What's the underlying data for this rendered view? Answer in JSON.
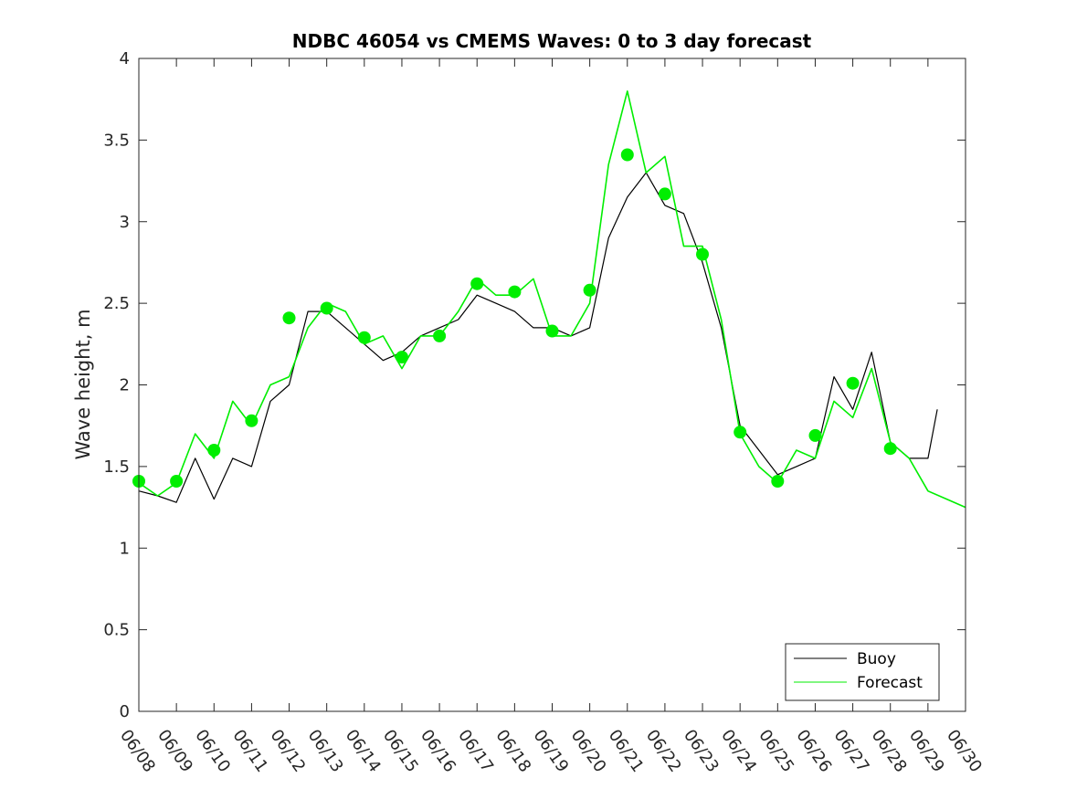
{
  "chart_data": {
    "type": "line",
    "title": "NDBC 46054 vs CMEMS Waves: 0 to 3 day forecast",
    "xlabel": "",
    "ylabel": "Wave height, m",
    "xlim": [
      "06/08",
      "06/30"
    ],
    "ylim": [
      0,
      4
    ],
    "x_tick_labels": [
      "06/08",
      "06/09",
      "06/10",
      "06/11",
      "06/12",
      "06/13",
      "06/14",
      "06/15",
      "06/16",
      "06/17",
      "06/18",
      "06/19",
      "06/20",
      "06/21",
      "06/22",
      "06/23",
      "06/24",
      "06/25",
      "06/26",
      "06/27",
      "06/28",
      "06/29",
      "06/30"
    ],
    "y_tick_labels": [
      "0",
      "0.5",
      "1",
      "1.5",
      "2",
      "2.5",
      "3",
      "3.5",
      "4"
    ],
    "grid": false,
    "legend_position": "bottom-right",
    "colors": {
      "buoy": "#000000",
      "forecast": "#00ee00",
      "markers": "#00ee00"
    },
    "series": [
      {
        "name": "Buoy",
        "x": [
          "06/08",
          "06/08 12:00",
          "06/09",
          "06/09 12:00",
          "06/10",
          "06/10 12:00",
          "06/11",
          "06/11 12:00",
          "06/12",
          "06/12 12:00",
          "06/13",
          "06/13 12:00",
          "06/14",
          "06/14 12:00",
          "06/15",
          "06/15 12:00",
          "06/16",
          "06/16 12:00",
          "06/17",
          "06/17 12:00",
          "06/18",
          "06/18 12:00",
          "06/19",
          "06/19 12:00",
          "06/20",
          "06/20 12:00",
          "06/21",
          "06/21 12:00",
          "06/22",
          "06/22 12:00",
          "06/23",
          "06/23 12:00",
          "06/24",
          "06/24 12:00",
          "06/25",
          "06/25 12:00",
          "06/26",
          "06/26 12:00",
          "06/27",
          "06/27 12:00",
          "06/28",
          "06/28 12:00",
          "06/29",
          "06/29 06:00"
        ],
        "values": [
          1.35,
          1.32,
          1.28,
          1.55,
          1.3,
          1.55,
          1.5,
          1.9,
          2.0,
          2.45,
          2.45,
          2.35,
          2.25,
          2.15,
          2.2,
          2.3,
          2.35,
          2.4,
          2.55,
          2.5,
          2.45,
          2.35,
          2.35,
          2.3,
          2.35,
          2.9,
          3.15,
          3.3,
          3.1,
          3.05,
          2.75,
          2.35,
          1.75,
          1.6,
          1.45,
          1.5,
          1.55,
          2.05,
          1.85,
          2.2,
          1.65,
          1.55,
          1.55,
          1.85
        ]
      },
      {
        "name": "Forecast",
        "x": [
          "06/08",
          "06/08 12:00",
          "06/09",
          "06/09 12:00",
          "06/10",
          "06/10 12:00",
          "06/11",
          "06/11 12:00",
          "06/12",
          "06/12 12:00",
          "06/13",
          "06/13 12:00",
          "06/14",
          "06/14 12:00",
          "06/15",
          "06/15 12:00",
          "06/16",
          "06/16 12:00",
          "06/17",
          "06/17 12:00",
          "06/18",
          "06/18 12:00",
          "06/19",
          "06/19 12:00",
          "06/20",
          "06/20 12:00",
          "06/21",
          "06/21 12:00",
          "06/22",
          "06/22 12:00",
          "06/23",
          "06/23 12:00",
          "06/24",
          "06/24 12:00",
          "06/25",
          "06/25 12:00",
          "06/26",
          "06/26 12:00",
          "06/27",
          "06/27 12:00",
          "06/28",
          "06/28 12:00",
          "06/29",
          "06/29 12:00",
          "06/30"
        ],
        "values": [
          1.4,
          1.32,
          1.4,
          1.7,
          1.55,
          1.9,
          1.75,
          2.0,
          2.05,
          2.35,
          2.5,
          2.45,
          2.25,
          2.3,
          2.1,
          2.3,
          2.3,
          2.45,
          2.65,
          2.55,
          2.55,
          2.65,
          2.3,
          2.3,
          2.5,
          3.35,
          3.8,
          3.3,
          3.4,
          2.85,
          2.85,
          2.4,
          1.7,
          1.5,
          1.4,
          1.6,
          1.55,
          1.9,
          1.8,
          2.1,
          1.65,
          1.55,
          1.35,
          1.3,
          1.25
        ]
      }
    ],
    "markers": {
      "x": [
        "06/08",
        "06/09",
        "06/10",
        "06/11",
        "06/12",
        "06/13",
        "06/14",
        "06/15",
        "06/16",
        "06/17",
        "06/18",
        "06/19",
        "06/20",
        "06/21",
        "06/22",
        "06/23",
        "06/24",
        "06/25",
        "06/26",
        "06/27",
        "06/28"
      ],
      "values": [
        1.41,
        1.41,
        1.6,
        1.78,
        2.41,
        2.47,
        2.29,
        2.17,
        2.3,
        2.62,
        2.57,
        2.33,
        2.58,
        3.41,
        3.17,
        2.8,
        1.71,
        1.41,
        1.69,
        2.01,
        1.61
      ]
    }
  }
}
